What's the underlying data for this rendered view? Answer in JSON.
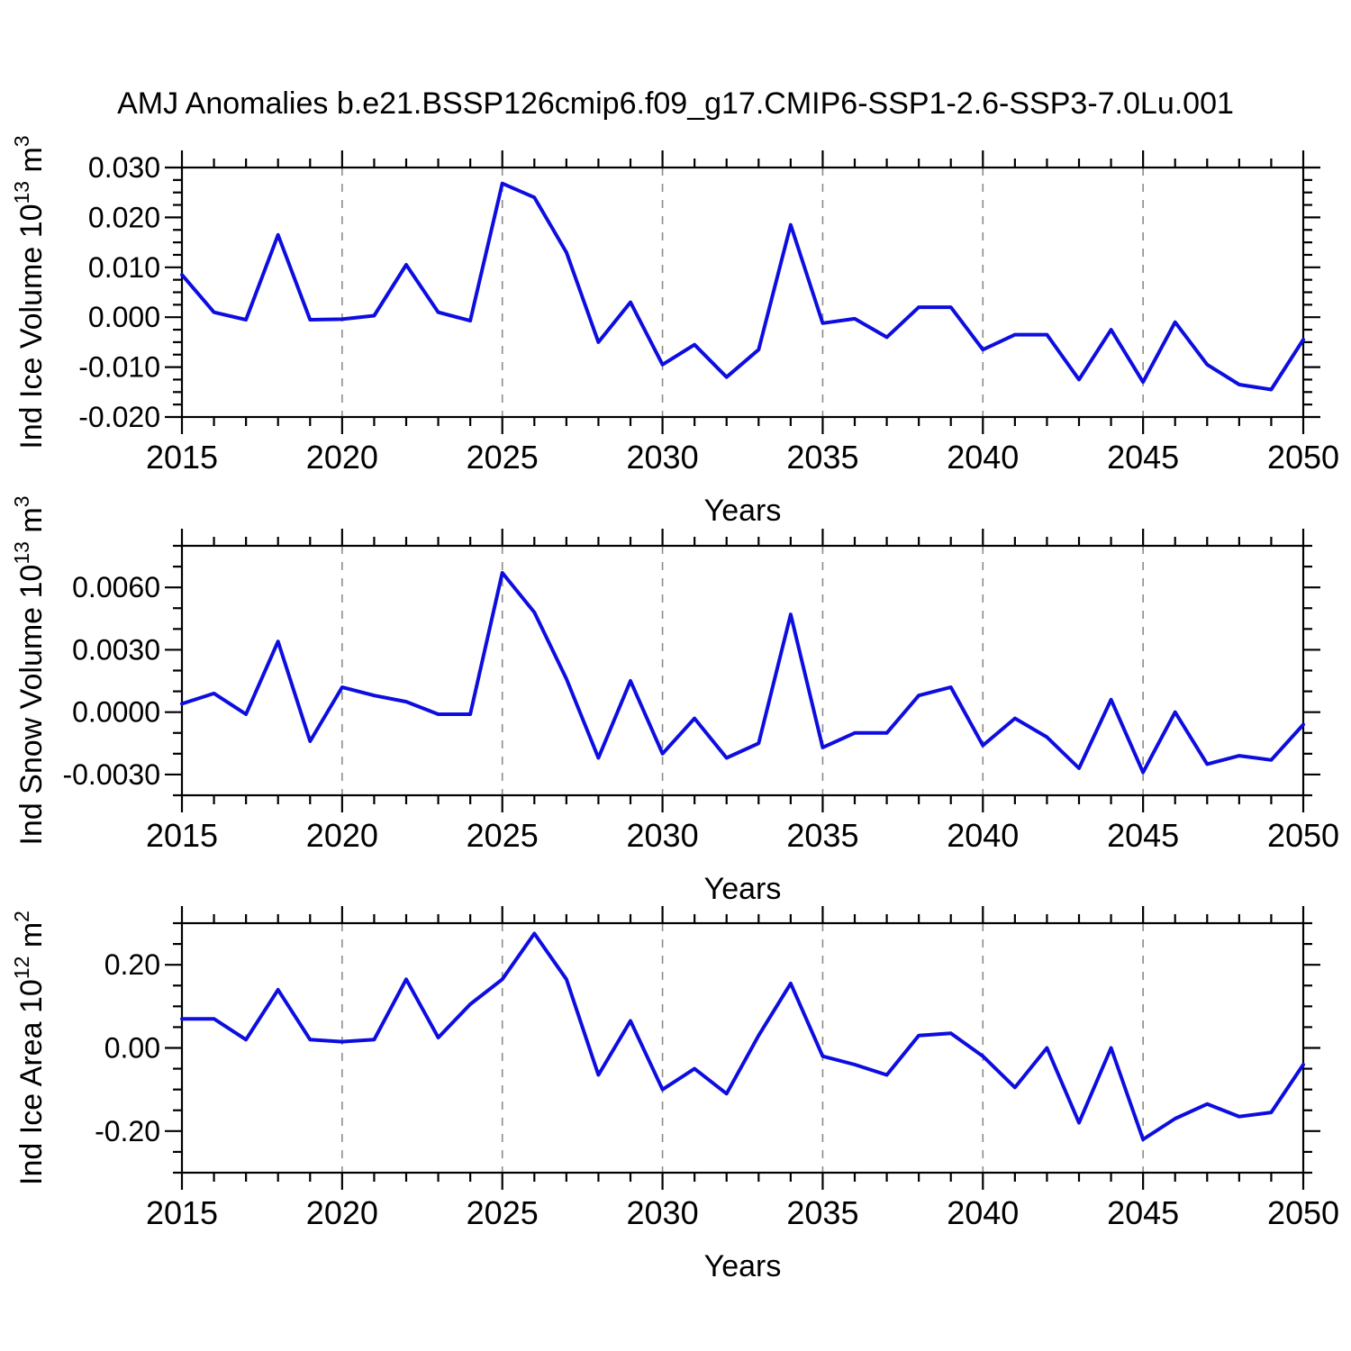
{
  "title": "AMJ Anomalies b.e21.BSSP126cmip6.f09_g17.CMIP6-SSP1-2.6-SSP3-7.0Lu.001",
  "colors": {
    "line": "#0d0de0",
    "grid": "#8c8c8c",
    "axis": "#000000",
    "text": "#000000",
    "background": "#ffffff"
  },
  "chart_data": [
    {
      "type": "line",
      "panel": 1,
      "ylabel_parts": [
        "Ind Ice Volume 10",
        "13",
        " m",
        "3"
      ],
      "xlabel": "Years",
      "ylim": [
        -0.02,
        0.03
      ],
      "yticks": [
        -0.02,
        -0.01,
        0.0,
        0.01,
        0.02,
        0.03
      ],
      "ytick_labels": [
        "-0.020",
        "-0.010",
        "0.000",
        "0.010",
        "0.020",
        "0.030"
      ],
      "yminor_step": 0.0025,
      "xlim": [
        2015,
        2050
      ],
      "xticks": [
        2015,
        2020,
        2025,
        2030,
        2035,
        2040,
        2045,
        2050
      ],
      "xtick_labels": [
        "2015",
        "2020",
        "2025",
        "2030",
        "2035",
        "2040",
        "2045",
        "2050"
      ],
      "xminor_step": 1,
      "grid_years": [
        2020,
        2025,
        2030,
        2035,
        2040,
        2045
      ],
      "grid_on": true,
      "legend": "none",
      "x": [
        2015,
        2016,
        2017,
        2018,
        2019,
        2020,
        2021,
        2022,
        2023,
        2024,
        2025,
        2026,
        2027,
        2028,
        2029,
        2030,
        2031,
        2032,
        2033,
        2034,
        2035,
        2036,
        2037,
        2038,
        2039,
        2040,
        2041,
        2042,
        2043,
        2044,
        2045,
        2046,
        2047,
        2048,
        2049,
        2050
      ],
      "values": [
        0.0085,
        0.001,
        -0.0005,
        0.0165,
        -0.0005,
        -0.0004,
        0.0003,
        0.0105,
        0.001,
        -0.0007,
        0.0268,
        0.024,
        0.013,
        -0.005,
        0.003,
        -0.0095,
        -0.0055,
        -0.012,
        -0.0065,
        0.0185,
        -0.0012,
        -0.0003,
        -0.004,
        0.002,
        0.002,
        -0.0065,
        -0.0035,
        -0.0035,
        -0.0125,
        -0.0025,
        -0.013,
        -0.001,
        -0.0095,
        -0.0135,
        -0.0145,
        -0.0045
      ]
    },
    {
      "type": "line",
      "panel": 2,
      "ylabel_parts": [
        "Ind Snow Volume 10",
        "13",
        " m",
        "3"
      ],
      "xlabel": "Years",
      "ylim": [
        -0.004,
        0.008
      ],
      "yticks": [
        -0.003,
        0.0,
        0.003,
        0.006
      ],
      "ytick_labels": [
        "-0.0030",
        "0.0000",
        "0.0030",
        "0.0060"
      ],
      "yminor_step": 0.001,
      "xlim": [
        2015,
        2050
      ],
      "xticks": [
        2015,
        2020,
        2025,
        2030,
        2035,
        2040,
        2045,
        2050
      ],
      "xtick_labels": [
        "2015",
        "2020",
        "2025",
        "2030",
        "2035",
        "2040",
        "2045",
        "2050"
      ],
      "xminor_step": 1,
      "grid_years": [
        2020,
        2025,
        2030,
        2035,
        2040,
        2045
      ],
      "grid_on": true,
      "legend": "none",
      "x": [
        2015,
        2016,
        2017,
        2018,
        2019,
        2020,
        2021,
        2022,
        2023,
        2024,
        2025,
        2026,
        2027,
        2028,
        2029,
        2030,
        2031,
        2032,
        2033,
        2034,
        2035,
        2036,
        2037,
        2038,
        2039,
        2040,
        2041,
        2042,
        2043,
        2044,
        2045,
        2046,
        2047,
        2048,
        2049,
        2050
      ],
      "values": [
        0.0004,
        0.0009,
        -0.0001,
        0.0034,
        -0.0014,
        0.0012,
        0.0008,
        0.0005,
        -0.0001,
        -0.0001,
        0.0067,
        0.0048,
        0.0016,
        -0.0022,
        0.0015,
        -0.002,
        -0.0003,
        -0.0022,
        -0.0015,
        0.0047,
        -0.0017,
        -0.001,
        -0.001,
        0.0008,
        0.0012,
        -0.0016,
        -0.0003,
        -0.0012,
        -0.0027,
        0.0006,
        -0.0029,
        0.0,
        -0.0025,
        -0.0021,
        -0.0023,
        -0.0006
      ]
    },
    {
      "type": "line",
      "panel": 3,
      "ylabel_parts": [
        "Ind Ice Area 10",
        "12",
        " m",
        "2"
      ],
      "xlabel": "Years",
      "ylim": [
        -0.3,
        0.3
      ],
      "yticks": [
        -0.2,
        0.0,
        0.2
      ],
      "ytick_labels": [
        "-0.20",
        "0.00",
        "0.20"
      ],
      "yminor_step": 0.05,
      "xlim": [
        2015,
        2050
      ],
      "xticks": [
        2015,
        2020,
        2025,
        2030,
        2035,
        2040,
        2045,
        2050
      ],
      "xtick_labels": [
        "2015",
        "2020",
        "2025",
        "2030",
        "2035",
        "2040",
        "2045",
        "2050"
      ],
      "xminor_step": 1,
      "grid_years": [
        2020,
        2025,
        2030,
        2035,
        2040,
        2045
      ],
      "grid_on": true,
      "legend": "none",
      "x": [
        2015,
        2016,
        2017,
        2018,
        2019,
        2020,
        2021,
        2022,
        2023,
        2024,
        2025,
        2026,
        2027,
        2028,
        2029,
        2030,
        2031,
        2032,
        2033,
        2034,
        2035,
        2036,
        2037,
        2038,
        2039,
        2040,
        2041,
        2042,
        2043,
        2044,
        2045,
        2046,
        2047,
        2048,
        2049,
        2050
      ],
      "values": [
        0.07,
        0.07,
        0.02,
        0.14,
        0.02,
        0.015,
        0.02,
        0.165,
        0.025,
        0.105,
        0.165,
        0.275,
        0.165,
        -0.065,
        0.065,
        -0.1,
        -0.05,
        -0.11,
        0.03,
        0.155,
        -0.02,
        -0.04,
        -0.065,
        0.03,
        0.035,
        -0.02,
        -0.095,
        0.0,
        -0.18,
        0.0,
        -0.22,
        -0.17,
        -0.135,
        -0.165,
        -0.155,
        -0.04
      ]
    }
  ]
}
